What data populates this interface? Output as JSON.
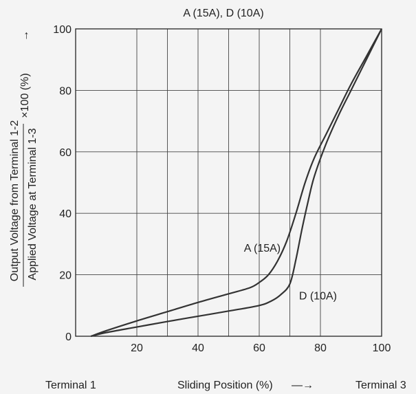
{
  "chart_data": {
    "type": "line",
    "title": "A (15A), D (10A)",
    "xlabel": "Sliding Position (%)",
    "xlabel_arrow": "—→",
    "x_left_label": "Terminal 1",
    "x_right_label": "Terminal 3",
    "ylabel_top": "Output Voltage from Terminal 1-2",
    "ylabel_bottom": "Applied Voltage at Terminal 1-3",
    "ylabel_suffix": "×100 (%)",
    "y_arrow": "→",
    "xlim": [
      0,
      100
    ],
    "ylim": [
      0,
      100
    ],
    "x_ticks": [
      20,
      40,
      60,
      80,
      100
    ],
    "y_ticks": [
      0,
      20,
      40,
      60,
      80,
      100
    ],
    "grid": true,
    "series": [
      {
        "name": "A (15A)",
        "color": "#333333",
        "points": [
          [
            5,
            0
          ],
          [
            10,
            1.8
          ],
          [
            20,
            5
          ],
          [
            30,
            8
          ],
          [
            40,
            11
          ],
          [
            50,
            13.8
          ],
          [
            57,
            15.8
          ],
          [
            60,
            17.5
          ],
          [
            63,
            20
          ],
          [
            66,
            24.5
          ],
          [
            69,
            31
          ],
          [
            72,
            40
          ],
          [
            75,
            50
          ],
          [
            78,
            58
          ],
          [
            82,
            66
          ],
          [
            86,
            74
          ],
          [
            90,
            82
          ],
          [
            95,
            91
          ],
          [
            100,
            100
          ]
        ]
      },
      {
        "name": "D (10A)",
        "color": "#333333",
        "points": [
          [
            5,
            0
          ],
          [
            10,
            1.2
          ],
          [
            20,
            3
          ],
          [
            30,
            4.8
          ],
          [
            40,
            6.5
          ],
          [
            50,
            8.2
          ],
          [
            60,
            10
          ],
          [
            64,
            11.5
          ],
          [
            67,
            13.5
          ],
          [
            70,
            17
          ],
          [
            72,
            25
          ],
          [
            74,
            35
          ],
          [
            76,
            44
          ],
          [
            78,
            52
          ],
          [
            82,
            63
          ],
          [
            86,
            72
          ],
          [
            90,
            80
          ],
          [
            95,
            90
          ],
          [
            100,
            100
          ]
        ]
      }
    ],
    "annotations": [
      {
        "text": "A (15A)",
        "x": 55,
        "y": 27.5
      },
      {
        "text": "D (10A)",
        "x": 73,
        "y": 12
      }
    ]
  }
}
